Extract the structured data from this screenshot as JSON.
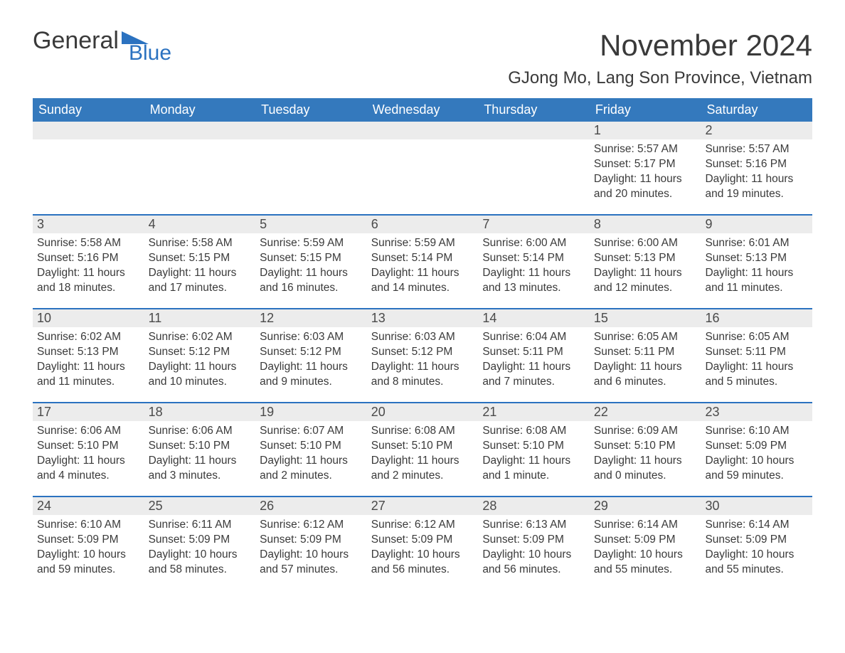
{
  "logo": {
    "word1": "General",
    "word2": "Blue"
  },
  "title": "November 2024",
  "subtitle": "GJong Mo, Lang Son Province, Vietnam",
  "colors": {
    "header_bg": "#3479bd",
    "header_text": "#ffffff",
    "row_border": "#2b72c0",
    "daynum_bg": "#ececec",
    "body_text": "#3a3a3a",
    "logo_accent": "#2b72c0",
    "page_bg": "#ffffff"
  },
  "fonts": {
    "title_size_pt": 32,
    "subtitle_size_pt": 18,
    "weekday_size_pt": 14,
    "body_size_pt": 12
  },
  "weekdays": [
    "Sunday",
    "Monday",
    "Tuesday",
    "Wednesday",
    "Thursday",
    "Friday",
    "Saturday"
  ],
  "weeks": [
    [
      null,
      null,
      null,
      null,
      null,
      {
        "day": "1",
        "sunrise": "Sunrise: 5:57 AM",
        "sunset": "Sunset: 5:17 PM",
        "daylight1": "Daylight: 11 hours",
        "daylight2": "and 20 minutes."
      },
      {
        "day": "2",
        "sunrise": "Sunrise: 5:57 AM",
        "sunset": "Sunset: 5:16 PM",
        "daylight1": "Daylight: 11 hours",
        "daylight2": "and 19 minutes."
      }
    ],
    [
      {
        "day": "3",
        "sunrise": "Sunrise: 5:58 AM",
        "sunset": "Sunset: 5:16 PM",
        "daylight1": "Daylight: 11 hours",
        "daylight2": "and 18 minutes."
      },
      {
        "day": "4",
        "sunrise": "Sunrise: 5:58 AM",
        "sunset": "Sunset: 5:15 PM",
        "daylight1": "Daylight: 11 hours",
        "daylight2": "and 17 minutes."
      },
      {
        "day": "5",
        "sunrise": "Sunrise: 5:59 AM",
        "sunset": "Sunset: 5:15 PM",
        "daylight1": "Daylight: 11 hours",
        "daylight2": "and 16 minutes."
      },
      {
        "day": "6",
        "sunrise": "Sunrise: 5:59 AM",
        "sunset": "Sunset: 5:14 PM",
        "daylight1": "Daylight: 11 hours",
        "daylight2": "and 14 minutes."
      },
      {
        "day": "7",
        "sunrise": "Sunrise: 6:00 AM",
        "sunset": "Sunset: 5:14 PM",
        "daylight1": "Daylight: 11 hours",
        "daylight2": "and 13 minutes."
      },
      {
        "day": "8",
        "sunrise": "Sunrise: 6:00 AM",
        "sunset": "Sunset: 5:13 PM",
        "daylight1": "Daylight: 11 hours",
        "daylight2": "and 12 minutes."
      },
      {
        "day": "9",
        "sunrise": "Sunrise: 6:01 AM",
        "sunset": "Sunset: 5:13 PM",
        "daylight1": "Daylight: 11 hours",
        "daylight2": "and 11 minutes."
      }
    ],
    [
      {
        "day": "10",
        "sunrise": "Sunrise: 6:02 AM",
        "sunset": "Sunset: 5:13 PM",
        "daylight1": "Daylight: 11 hours",
        "daylight2": "and 11 minutes."
      },
      {
        "day": "11",
        "sunrise": "Sunrise: 6:02 AM",
        "sunset": "Sunset: 5:12 PM",
        "daylight1": "Daylight: 11 hours",
        "daylight2": "and 10 minutes."
      },
      {
        "day": "12",
        "sunrise": "Sunrise: 6:03 AM",
        "sunset": "Sunset: 5:12 PM",
        "daylight1": "Daylight: 11 hours",
        "daylight2": "and 9 minutes."
      },
      {
        "day": "13",
        "sunrise": "Sunrise: 6:03 AM",
        "sunset": "Sunset: 5:12 PM",
        "daylight1": "Daylight: 11 hours",
        "daylight2": "and 8 minutes."
      },
      {
        "day": "14",
        "sunrise": "Sunrise: 6:04 AM",
        "sunset": "Sunset: 5:11 PM",
        "daylight1": "Daylight: 11 hours",
        "daylight2": "and 7 minutes."
      },
      {
        "day": "15",
        "sunrise": "Sunrise: 6:05 AM",
        "sunset": "Sunset: 5:11 PM",
        "daylight1": "Daylight: 11 hours",
        "daylight2": "and 6 minutes."
      },
      {
        "day": "16",
        "sunrise": "Sunrise: 6:05 AM",
        "sunset": "Sunset: 5:11 PM",
        "daylight1": "Daylight: 11 hours",
        "daylight2": "and 5 minutes."
      }
    ],
    [
      {
        "day": "17",
        "sunrise": "Sunrise: 6:06 AM",
        "sunset": "Sunset: 5:10 PM",
        "daylight1": "Daylight: 11 hours",
        "daylight2": "and 4 minutes."
      },
      {
        "day": "18",
        "sunrise": "Sunrise: 6:06 AM",
        "sunset": "Sunset: 5:10 PM",
        "daylight1": "Daylight: 11 hours",
        "daylight2": "and 3 minutes."
      },
      {
        "day": "19",
        "sunrise": "Sunrise: 6:07 AM",
        "sunset": "Sunset: 5:10 PM",
        "daylight1": "Daylight: 11 hours",
        "daylight2": "and 2 minutes."
      },
      {
        "day": "20",
        "sunrise": "Sunrise: 6:08 AM",
        "sunset": "Sunset: 5:10 PM",
        "daylight1": "Daylight: 11 hours",
        "daylight2": "and 2 minutes."
      },
      {
        "day": "21",
        "sunrise": "Sunrise: 6:08 AM",
        "sunset": "Sunset: 5:10 PM",
        "daylight1": "Daylight: 11 hours",
        "daylight2": "and 1 minute."
      },
      {
        "day": "22",
        "sunrise": "Sunrise: 6:09 AM",
        "sunset": "Sunset: 5:10 PM",
        "daylight1": "Daylight: 11 hours",
        "daylight2": "and 0 minutes."
      },
      {
        "day": "23",
        "sunrise": "Sunrise: 6:10 AM",
        "sunset": "Sunset: 5:09 PM",
        "daylight1": "Daylight: 10 hours",
        "daylight2": "and 59 minutes."
      }
    ],
    [
      {
        "day": "24",
        "sunrise": "Sunrise: 6:10 AM",
        "sunset": "Sunset: 5:09 PM",
        "daylight1": "Daylight: 10 hours",
        "daylight2": "and 59 minutes."
      },
      {
        "day": "25",
        "sunrise": "Sunrise: 6:11 AM",
        "sunset": "Sunset: 5:09 PM",
        "daylight1": "Daylight: 10 hours",
        "daylight2": "and 58 minutes."
      },
      {
        "day": "26",
        "sunrise": "Sunrise: 6:12 AM",
        "sunset": "Sunset: 5:09 PM",
        "daylight1": "Daylight: 10 hours",
        "daylight2": "and 57 minutes."
      },
      {
        "day": "27",
        "sunrise": "Sunrise: 6:12 AM",
        "sunset": "Sunset: 5:09 PM",
        "daylight1": "Daylight: 10 hours",
        "daylight2": "and 56 minutes."
      },
      {
        "day": "28",
        "sunrise": "Sunrise: 6:13 AM",
        "sunset": "Sunset: 5:09 PM",
        "daylight1": "Daylight: 10 hours",
        "daylight2": "and 56 minutes."
      },
      {
        "day": "29",
        "sunrise": "Sunrise: 6:14 AM",
        "sunset": "Sunset: 5:09 PM",
        "daylight1": "Daylight: 10 hours",
        "daylight2": "and 55 minutes."
      },
      {
        "day": "30",
        "sunrise": "Sunrise: 6:14 AM",
        "sunset": "Sunset: 5:09 PM",
        "daylight1": "Daylight: 10 hours",
        "daylight2": "and 55 minutes."
      }
    ]
  ]
}
